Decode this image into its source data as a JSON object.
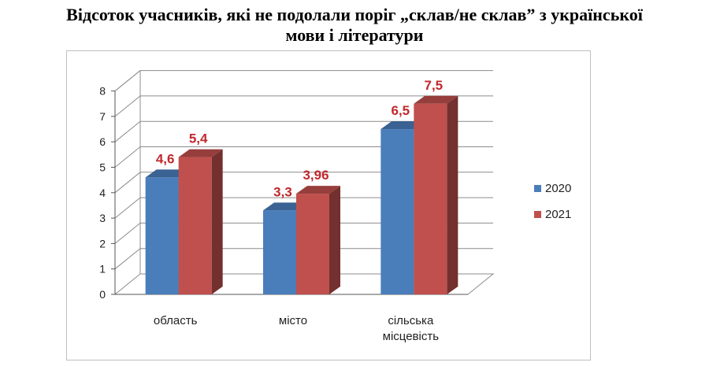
{
  "chart_data": {
    "type": "bar",
    "title_lines": [
      "Відсоток учасників, які не подолали поріг „склав/не склав” з української",
      "мови і літератури"
    ],
    "categories": [
      [
        "область"
      ],
      [
        "місто"
      ],
      [
        "сільська",
        "місцевість"
      ]
    ],
    "series": [
      {
        "name": "2020",
        "color": "#4a7ebb",
        "values": [
          4.6,
          3.3,
          6.5
        ],
        "labels": [
          "4,6",
          "3,3",
          "6,5"
        ]
      },
      {
        "name": "2021",
        "color": "#c0504d",
        "values": [
          5.4,
          3.96,
          7.5
        ],
        "labels": [
          "5,4",
          "3,96",
          "7,5"
        ]
      }
    ],
    "yticks": [
      "0",
      "1",
      "2",
      "3",
      "4",
      "5",
      "6",
      "7",
      "8"
    ],
    "ylim": [
      0,
      8
    ],
    "grid": true,
    "legend_position": "right"
  }
}
